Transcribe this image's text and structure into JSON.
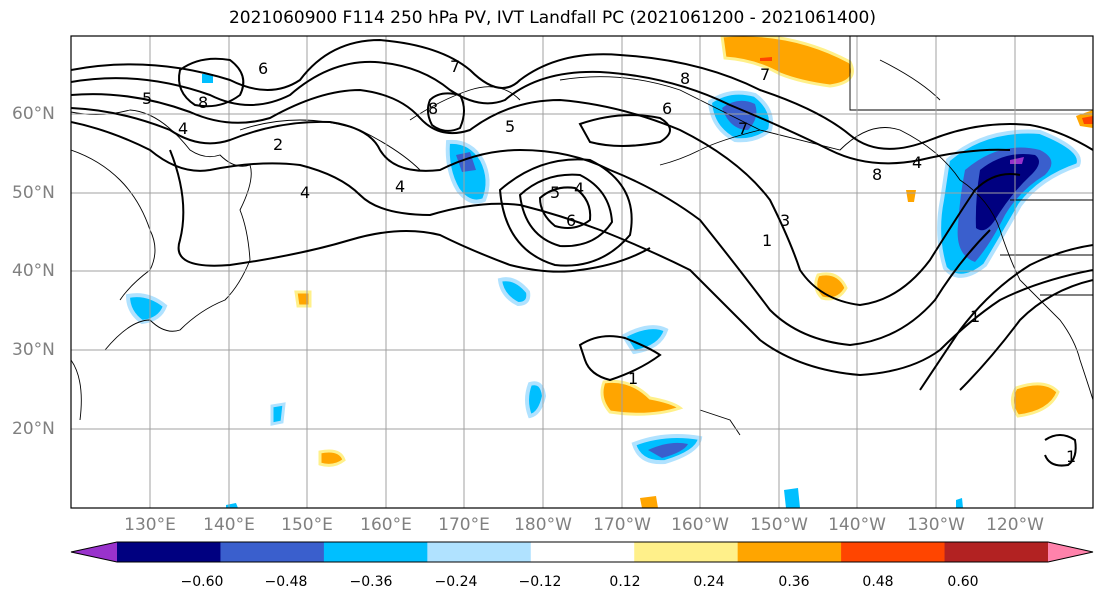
{
  "title": "2021060900 F114 250 hPa PV, IVT Landfall PC (2021061200 - 2021061400)",
  "lat_labels": [
    "60°N",
    "50°N",
    "40°N",
    "30°N",
    "20°N"
  ],
  "lon_labels": [
    "130°E",
    "140°E",
    "150°E",
    "160°E",
    "170°E",
    "180°W",
    "170°W",
    "160°W",
    "150°W",
    "140°W",
    "130°W",
    "120°W"
  ],
  "contour_labels": [
    "5",
    "6",
    "8",
    "7",
    "8",
    "4",
    "2",
    "4",
    "4",
    "5",
    "5",
    "4",
    "6",
    "8",
    "6",
    "7",
    "7",
    "1",
    "3",
    "8",
    "4",
    "1",
    "1",
    "1"
  ],
  "colorbar": {
    "labels": [
      "−0.60",
      "−0.48",
      "−0.36",
      "−0.24",
      "−0.12",
      "0.12",
      "0.24",
      "0.36",
      "0.48",
      "0.60"
    ],
    "colors": [
      "#9932cc",
      "#000080",
      "#3a5fcd",
      "#00bfff",
      "#b0e2ff",
      "#ffffff",
      "#fff08a",
      "#ffa500",
      "#ff4500",
      "#b22222",
      "#ff82ab"
    ]
  }
}
